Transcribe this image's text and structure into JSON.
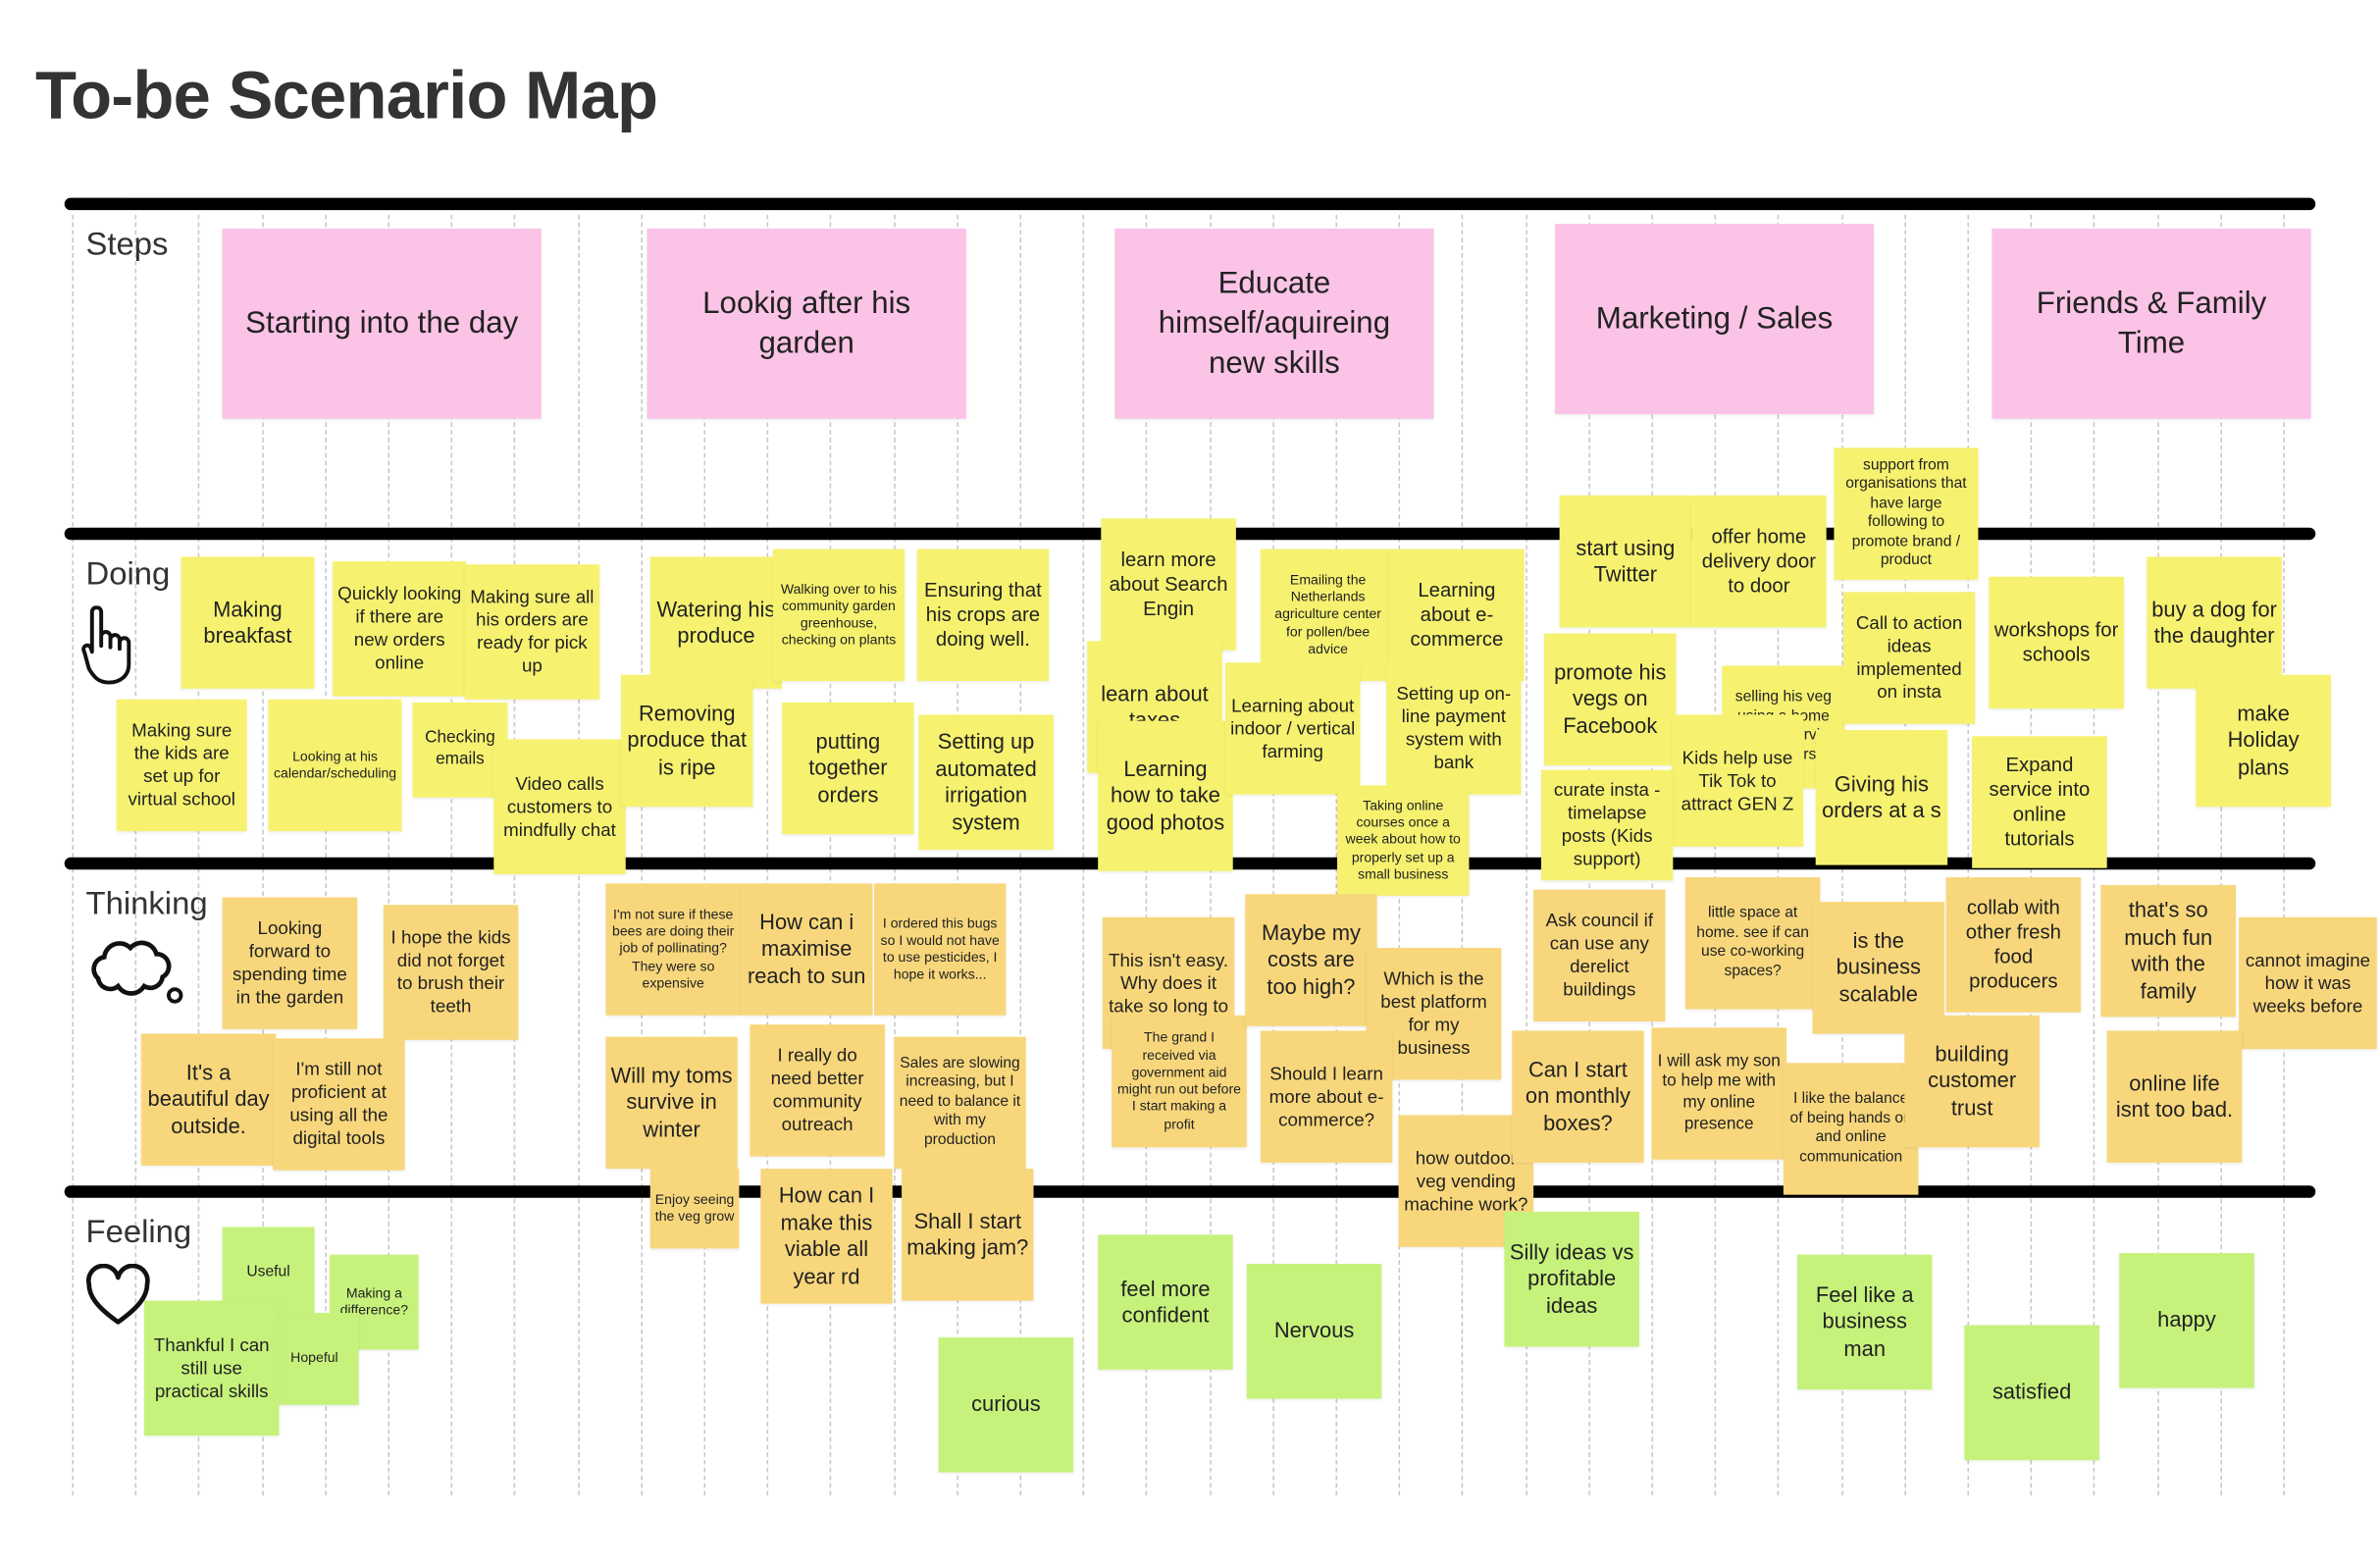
{
  "title": "To-be Scenario Map",
  "lanes": [
    {
      "label": "Steps"
    },
    {
      "label": "Doing"
    },
    {
      "label": "Thinking"
    },
    {
      "label": "Feeling"
    }
  ],
  "steps": [
    {
      "text": "Starting into the day",
      "color": "#fbc3e6"
    },
    {
      "text": "Lookig after his garden",
      "color": "#fbc3e6"
    },
    {
      "text": "Educate himself/aquireing new skills",
      "color": "#fbc3e6"
    },
    {
      "text": "Marketing / Sales",
      "color": "#fbc3e6"
    },
    {
      "text": "Friends & Family Time",
      "color": "#fbc3e6"
    }
  ],
  "notes": [
    {
      "text": "Making breakfast",
      "color": "#f6f270"
    },
    {
      "text": "Quickly looking if there are new orders online",
      "color": "#f6f270"
    },
    {
      "text": "Making sure all his orders are ready for pick up",
      "color": "#f6f270"
    },
    {
      "text": "Making sure the kids are set up for virtual school",
      "color": "#f6f270"
    },
    {
      "text": "Looking at his calendar/scheduling",
      "color": "#f6f270"
    },
    {
      "text": "Checking emails",
      "color": "#f6f270"
    },
    {
      "text": "Video calls customers to mindfully chat",
      "color": "#f6f270"
    },
    {
      "text": "Watering his produce",
      "color": "#f6f270"
    },
    {
      "text": "Walking over to his community garden greenhouse, checking on plants",
      "color": "#f6f270"
    },
    {
      "text": "Ensuring that his crops are doing well.",
      "color": "#f6f270"
    },
    {
      "text": "Removing produce that is ripe",
      "color": "#f6f270"
    },
    {
      "text": "putting together orders",
      "color": "#f6f270"
    },
    {
      "text": "Setting up automated irrigation system",
      "color": "#f6f270"
    },
    {
      "text": "learn more about Search Engin",
      "color": "#f6f270"
    },
    {
      "text": "learn about taxes",
      "color": "#f6f270"
    },
    {
      "text": "Learning how to take good photos",
      "color": "#f6f270"
    },
    {
      "text": "Emailing the Netherlands agriculture center for pollen/bee advice",
      "color": "#f6f270"
    },
    {
      "text": "Learning about indoor / vertical farming",
      "color": "#f6f270"
    },
    {
      "text": "Learning about e-commerce",
      "color": "#f6f270"
    },
    {
      "text": "Setting up on-line payment system with bank",
      "color": "#f6f270"
    },
    {
      "text": "Taking online courses once a week about how to properly set up a small business",
      "color": "#f6f270"
    },
    {
      "text": "start using Twitter",
      "color": "#f6f270"
    },
    {
      "text": "offer home delivery door to door",
      "color": "#f6f270"
    },
    {
      "text": "support from organisations that have large following to promote brand / product",
      "color": "#f6f270"
    },
    {
      "text": "promote his vegs on Facebook",
      "color": "#f6f270"
    },
    {
      "text": "selling his veg using a home delivery service for orders",
      "color": "#f6f270"
    },
    {
      "text": "Call to action ideas implemented on insta",
      "color": "#f6f270"
    },
    {
      "text": "Giving his orders at a s",
      "color": "#f6f270"
    },
    {
      "text": "Kids help use Tik Tok to attract GEN Z",
      "color": "#f6f270"
    },
    {
      "text": "curate insta - timelapse posts (Kids support)",
      "color": "#f6f270"
    },
    {
      "text": "workshops for schools",
      "color": "#f6f270"
    },
    {
      "text": "Expand service into online tutorials",
      "color": "#f6f270"
    },
    {
      "text": "buy a dog for the daughter",
      "color": "#f6f270"
    },
    {
      "text": "make Holiday plans",
      "color": "#f6f270"
    },
    {
      "text": "Looking forward to spending time in the garden",
      "color": "#f8d77c"
    },
    {
      "text": "I hope the kids did not forget to brush their teeth",
      "color": "#f8d77c"
    },
    {
      "text": "It's a beautiful day outside.",
      "color": "#f8d77c"
    },
    {
      "text": "I'm still not proficient at using all the digital tools",
      "color": "#f8d77c"
    },
    {
      "text": "I'm not sure if these bees are doing their job of pollinating? They were so expensive",
      "color": "#f8d77c"
    },
    {
      "text": "How can i maximise reach to sun",
      "color": "#f8d77c"
    },
    {
      "text": "I ordered this bugs so I would not have to use pesticides, I hope it works...",
      "color": "#f8d77c"
    },
    {
      "text": "Will my toms survive in winter",
      "color": "#f8d77c"
    },
    {
      "text": "I really do need better community outreach",
      "color": "#f8d77c"
    },
    {
      "text": "Sales are slowing increasing, but I need to balance it with my production",
      "color": "#f8d77c"
    },
    {
      "text": "Enjoy seeing the veg grow",
      "color": "#f8d77c"
    },
    {
      "text": "How can I make this viable all year rd",
      "color": "#f8d77c"
    },
    {
      "text": "Shall I start making jam?",
      "color": "#f8d77c"
    },
    {
      "text": "This isn't easy. Why does it take so long to",
      "color": "#f8d77c"
    },
    {
      "text": "The grand I received via government aid might run out before I start making a profit",
      "color": "#f8d77c"
    },
    {
      "text": "Maybe my costs are too high?",
      "color": "#f8d77c"
    },
    {
      "text": "Which is the best platform for my business",
      "color": "#f8d77c"
    },
    {
      "text": "Should I learn more about e-commerce?",
      "color": "#f8d77c"
    },
    {
      "text": "how outdoor veg vending machine work?",
      "color": "#f8d77c"
    },
    {
      "text": "Ask council if can use any derelict buildings",
      "color": "#f8d77c"
    },
    {
      "text": "little space at home. see if can use co-working spaces?",
      "color": "#f8d77c"
    },
    {
      "text": "is the business scalable",
      "color": "#f8d77c"
    },
    {
      "text": "collab with other fresh food producers",
      "color": "#f8d77c"
    },
    {
      "text": "Can I start on monthly boxes?",
      "color": "#f8d77c"
    },
    {
      "text": "I will ask my son to help me with my online presence",
      "color": "#f8d77c"
    },
    {
      "text": "I like the balance of being hands on and online communication",
      "color": "#f8d77c"
    },
    {
      "text": "building customer trust",
      "color": "#f8d77c"
    },
    {
      "text": "that's so much fun with the family",
      "color": "#f8d77c"
    },
    {
      "text": "cannot imagine how it was weeks before",
      "color": "#f8d77c"
    },
    {
      "text": "online life isnt too bad.",
      "color": "#f8d77c"
    },
    {
      "text": "Useful",
      "color": "#c6f27c"
    },
    {
      "text": "Making a difference?",
      "color": "#c6f27c"
    },
    {
      "text": "Hopeful",
      "color": "#c6f27c"
    },
    {
      "text": "Thankful I can still use practical skills",
      "color": "#c6f27c"
    },
    {
      "text": "curious",
      "color": "#c6f27c"
    },
    {
      "text": "feel more confident",
      "color": "#c6f27c"
    },
    {
      "text": "Nervous",
      "color": "#c6f27c"
    },
    {
      "text": "Silly ideas vs profitable ideas",
      "color": "#c6f27c"
    },
    {
      "text": "Feel like a business man",
      "color": "#c6f27c"
    },
    {
      "text": "satisfied",
      "color": "#c6f27c"
    },
    {
      "text": "happy",
      "color": "#c6f27c"
    }
  ]
}
